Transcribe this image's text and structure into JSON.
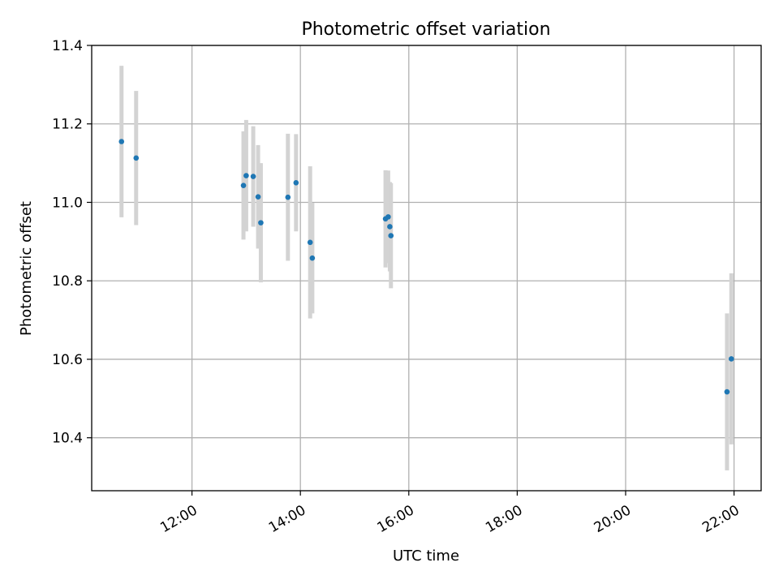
{
  "chart_data": {
    "type": "scatter",
    "title": "Photometric offset variation",
    "xlabel": "UTC time",
    "ylabel": "Photometric offset",
    "x_unit": "hours UTC",
    "xlim": [
      10.15,
      22.5
    ],
    "ylim": [
      10.265,
      11.4
    ],
    "x_ticks": [
      {
        "value": 12,
        "label": "12:00"
      },
      {
        "value": 14,
        "label": "14:00"
      },
      {
        "value": 16,
        "label": "16:00"
      },
      {
        "value": 18,
        "label": "18:00"
      },
      {
        "value": 20,
        "label": "20:00"
      },
      {
        "value": 22,
        "label": "22:00"
      }
    ],
    "y_ticks": [
      {
        "value": 10.4,
        "label": "10.4"
      },
      {
        "value": 10.6,
        "label": "10.6"
      },
      {
        "value": 10.8,
        "label": "10.8"
      },
      {
        "value": 11.0,
        "label": "11.0"
      },
      {
        "value": 11.2,
        "label": "11.2"
      },
      {
        "value": 11.4,
        "label": "11.4"
      }
    ],
    "grid": true,
    "marker_color": "#1f77b4",
    "errorbar_color": "#d3d3d3",
    "points": [
      {
        "x": 10.7,
        "y": 11.155,
        "err": 0.193
      },
      {
        "x": 10.97,
        "y": 11.113,
        "err": 0.171
      },
      {
        "x": 12.95,
        "y": 11.043,
        "err": 0.138
      },
      {
        "x": 13.0,
        "y": 11.068,
        "err": 0.142
      },
      {
        "x": 13.13,
        "y": 11.066,
        "err": 0.128
      },
      {
        "x": 13.22,
        "y": 11.014,
        "err": 0.132
      },
      {
        "x": 13.27,
        "y": 10.948,
        "err": 0.152
      },
      {
        "x": 13.77,
        "y": 11.013,
        "err": 0.162
      },
      {
        "x": 13.92,
        "y": 11.05,
        "err": 0.124
      },
      {
        "x": 14.18,
        "y": 10.898,
        "err": 0.194
      },
      {
        "x": 14.22,
        "y": 10.858,
        "err": 0.141
      },
      {
        "x": 15.57,
        "y": 10.958,
        "err": 0.124
      },
      {
        "x": 15.62,
        "y": 10.963,
        "err": 0.118
      },
      {
        "x": 15.65,
        "y": 10.938,
        "err": 0.114
      },
      {
        "x": 15.67,
        "y": 10.915,
        "err": 0.134
      },
      {
        "x": 21.87,
        "y": 10.517,
        "err": 0.2
      },
      {
        "x": 21.95,
        "y": 10.601,
        "err": 0.218
      }
    ]
  }
}
